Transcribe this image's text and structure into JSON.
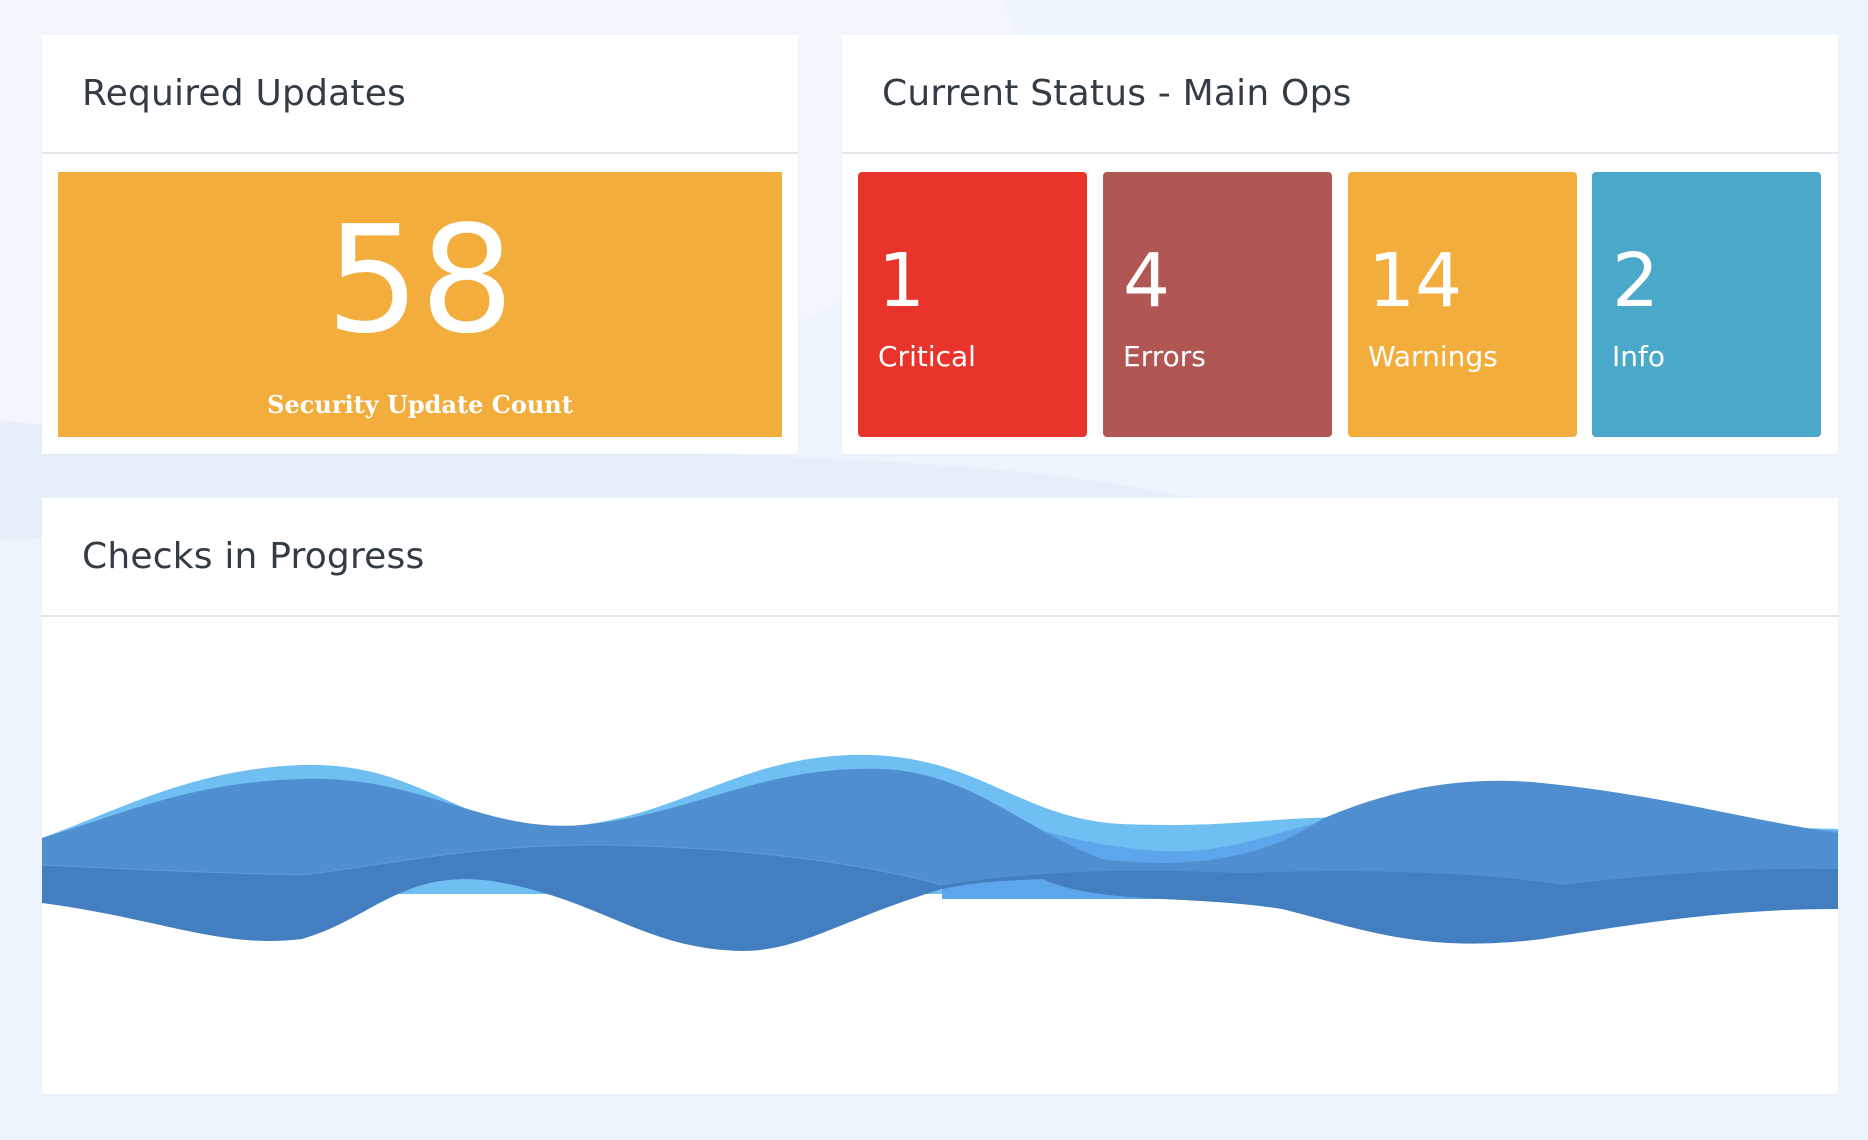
{
  "colors": {
    "page_background": "#eef4fc",
    "warning_orange": "#f2ad3d",
    "critical_red": "#e8342b",
    "error_brown": "#b05753",
    "info_blue": "#4aa8ca",
    "stream_light": "#6fbff2",
    "stream_mid": "#4f8fd0",
    "stream_dark": "#437fc0"
  },
  "updates_panel": {
    "title": "Required Updates",
    "count": "58",
    "label": "Security Update Count"
  },
  "status_panel": {
    "title": "Current Status - Main Ops",
    "tiles": [
      {
        "count": "1",
        "label": "Critical"
      },
      {
        "count": "4",
        "label": "Errors"
      },
      {
        "count": "14",
        "label": "Warnings"
      },
      {
        "count": "2",
        "label": "Info"
      }
    ]
  },
  "checks_panel": {
    "title": "Checks in Progress"
  }
}
